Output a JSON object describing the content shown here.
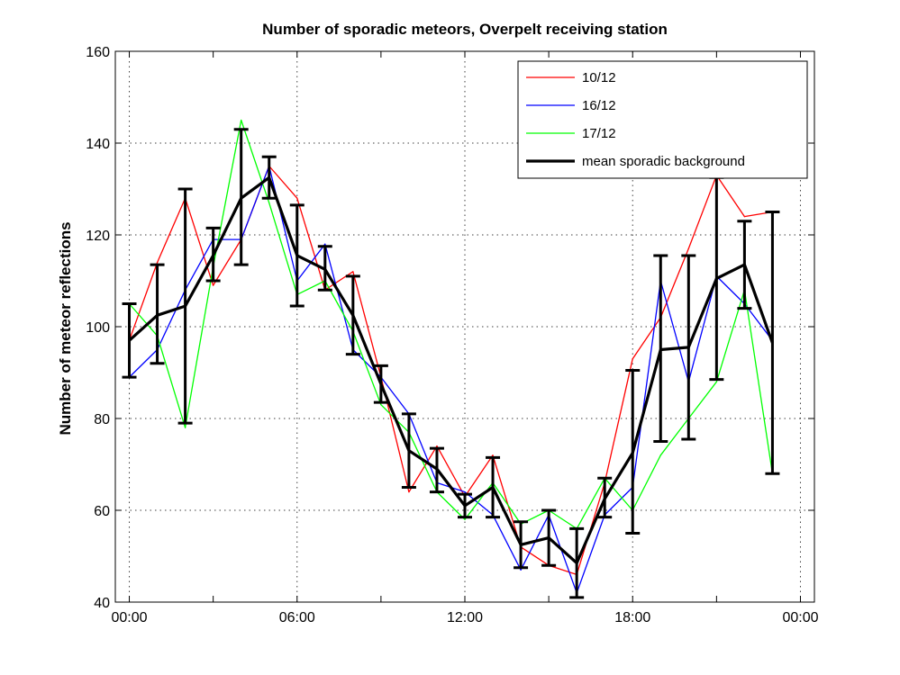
{
  "chart_data": {
    "type": "line",
    "title": "Number of sporadic meteors, Overpelt receiving station",
    "xlabel": "",
    "ylabel": "Number of meteor reflections",
    "ylim": [
      40,
      160
    ],
    "yticks": [
      40,
      60,
      80,
      100,
      120,
      140,
      160
    ],
    "xlim": [
      -0.5,
      24.5
    ],
    "xticks": [
      0,
      6,
      12,
      18,
      24
    ],
    "xtick_labels": [
      "00:00",
      "06:00",
      "12:00",
      "18:00",
      "00:00"
    ],
    "grid": true,
    "legend_position": "top-right",
    "x": [
      0,
      1,
      2,
      3,
      4,
      5,
      6,
      7,
      8,
      9,
      10,
      11,
      12,
      13,
      14,
      15,
      16,
      17,
      18,
      19,
      20,
      21,
      22,
      23
    ],
    "series": [
      {
        "name": "10/12",
        "color": "#ff0000",
        "width": 1.3,
        "values": [
          97,
          114,
          128,
          109,
          119,
          135,
          128,
          108,
          112,
          89,
          64,
          74,
          63,
          72,
          52,
          48,
          46,
          66,
          93,
          102,
          117,
          133,
          124,
          125
        ]
      },
      {
        "name": "16/12",
        "color": "#0000ff",
        "width": 1.3,
        "values": [
          89,
          95,
          108,
          119,
          119,
          135,
          110,
          118,
          95,
          89,
          81,
          66,
          64,
          59,
          47,
          59,
          42,
          59,
          65,
          110,
          88,
          111,
          105,
          97
        ]
      },
      {
        "name": "17/12",
        "color": "#00ff00",
        "width": 1.3,
        "values": [
          105,
          98,
          78,
          113,
          145,
          127,
          107,
          110,
          99,
          83,
          77,
          64,
          58,
          66,
          57,
          60,
          56,
          67,
          60,
          72,
          80,
          88,
          108,
          68
        ]
      },
      {
        "name": "mean sporadic background",
        "color": "#000000",
        "width": 3.2,
        "values": [
          97,
          102.5,
          104.5,
          115.5,
          128,
          132.5,
          115.5,
          112.5,
          102.5,
          87.5,
          73,
          69,
          61,
          65,
          52.5,
          54,
          48.5,
          62.5,
          72.5,
          95,
          95.5,
          110.5,
          113.5,
          96.5
        ],
        "error_low": [
          89,
          92,
          79,
          110,
          113.5,
          128,
          104.5,
          108,
          94,
          83.5,
          65,
          64,
          58.5,
          58.5,
          47.5,
          48,
          41,
          58.5,
          55,
          75,
          75.5,
          88.5,
          104,
          68
        ],
        "error_high": [
          105,
          113.5,
          130,
          121.5,
          143,
          137,
          126.5,
          117.5,
          111,
          91.5,
          81,
          73.5,
          63.5,
          71.5,
          57.5,
          60,
          56,
          67,
          90.5,
          115.5,
          115.5,
          132.5,
          123,
          125
        ]
      }
    ]
  }
}
